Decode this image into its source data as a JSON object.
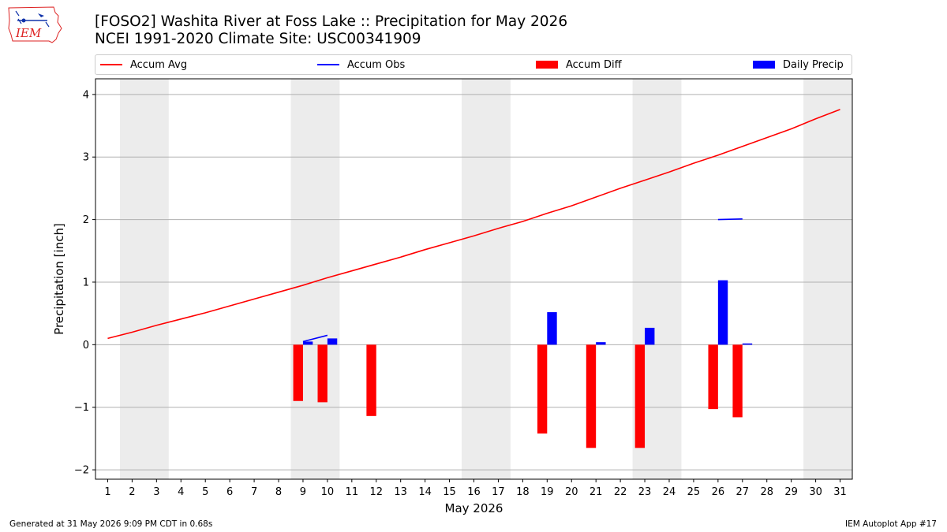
{
  "header": {
    "title_line1": "[FOSO2] Washita River at Foss Lake :: Precipitation for May 2026",
    "title_line2": "NCEI 1991-2020 Climate Site: USC00341909",
    "logo_text": "IEM"
  },
  "legend": {
    "items": [
      {
        "label": "Accum Avg",
        "kind": "line",
        "color": "#ff0000"
      },
      {
        "label": "Accum Obs",
        "kind": "line",
        "color": "#0000ff"
      },
      {
        "label": "Accum Diff",
        "kind": "box",
        "color": "#ff0000"
      },
      {
        "label": "Daily Precip",
        "kind": "box",
        "color": "#0000ff"
      }
    ]
  },
  "footer": {
    "left": "Generated at 31 May 2026 9:09 PM CDT in 0.68s",
    "right": "IEM Autoplot App #17"
  },
  "chart_data": {
    "type": "bar",
    "xlabel": "May 2026",
    "ylabel": "Precipitation [inch]",
    "xlim": [
      0.5,
      31.5
    ],
    "ylim": [
      -2.15,
      4.25
    ],
    "yticks": [
      -2,
      -1,
      0,
      1,
      2,
      3,
      4
    ],
    "ytick_labels": [
      "−2",
      "−1",
      "0",
      "1",
      "2",
      "3",
      "4"
    ],
    "days": [
      1,
      2,
      3,
      4,
      5,
      6,
      7,
      8,
      9,
      10,
      11,
      12,
      13,
      14,
      15,
      16,
      17,
      18,
      19,
      20,
      21,
      22,
      23,
      24,
      25,
      26,
      27,
      28,
      29,
      30,
      31
    ],
    "grid": "horizontal",
    "weekend_shading": [
      [
        2,
        3
      ],
      [
        9,
        10
      ],
      [
        16,
        17
      ],
      [
        23,
        24
      ],
      [
        30,
        31
      ]
    ],
    "shade_color": "#ececec",
    "series": [
      {
        "name": "Accum Avg",
        "kind": "line",
        "color": "#ff0000",
        "points": [
          [
            1,
            0.1
          ],
          [
            2,
            0.2
          ],
          [
            3,
            0.31
          ],
          [
            4,
            0.41
          ],
          [
            5,
            0.51
          ],
          [
            6,
            0.62
          ],
          [
            7,
            0.73
          ],
          [
            8,
            0.84
          ],
          [
            9,
            0.95
          ],
          [
            10,
            1.07
          ],
          [
            11,
            1.18
          ],
          [
            12,
            1.29
          ],
          [
            13,
            1.4
          ],
          [
            14,
            1.52
          ],
          [
            15,
            1.63
          ],
          [
            16,
            1.74
          ],
          [
            17,
            1.86
          ],
          [
            18,
            1.97
          ],
          [
            19,
            2.1
          ],
          [
            20,
            2.22
          ],
          [
            21,
            2.36
          ],
          [
            22,
            2.5
          ],
          [
            23,
            2.63
          ],
          [
            24,
            2.76
          ],
          [
            25,
            2.9
          ],
          [
            26,
            3.03
          ],
          [
            27,
            3.17
          ],
          [
            28,
            3.31
          ],
          [
            29,
            3.45
          ],
          [
            30,
            3.61
          ],
          [
            31,
            3.76
          ]
        ]
      },
      {
        "name": "Accum Obs",
        "kind": "segments",
        "color": "#0000ff",
        "segments": [
          [
            [
              9,
              0.05
            ],
            [
              10,
              0.15
            ]
          ],
          [
            [
              26,
              2.0
            ],
            [
              27,
              2.01
            ]
          ]
        ]
      },
      {
        "name": "Accum Diff",
        "kind": "bar",
        "color": "#ff0000",
        "offset": -0.2,
        "points": [
          [
            9,
            -0.9
          ],
          [
            10,
            -0.92
          ],
          [
            12,
            -1.14
          ],
          [
            19,
            -1.42
          ],
          [
            21,
            -1.65
          ],
          [
            23,
            -1.65
          ],
          [
            26,
            -1.03
          ],
          [
            27,
            -1.16
          ]
        ]
      },
      {
        "name": "Daily Precip",
        "kind": "bar",
        "color": "#0000ff",
        "offset": 0.2,
        "points": [
          [
            9,
            0.05
          ],
          [
            10,
            0.1
          ],
          [
            19,
            0.52
          ],
          [
            21,
            0.04
          ],
          [
            23,
            0.27
          ],
          [
            26,
            1.03
          ],
          [
            27,
            0.02
          ]
        ]
      }
    ]
  }
}
